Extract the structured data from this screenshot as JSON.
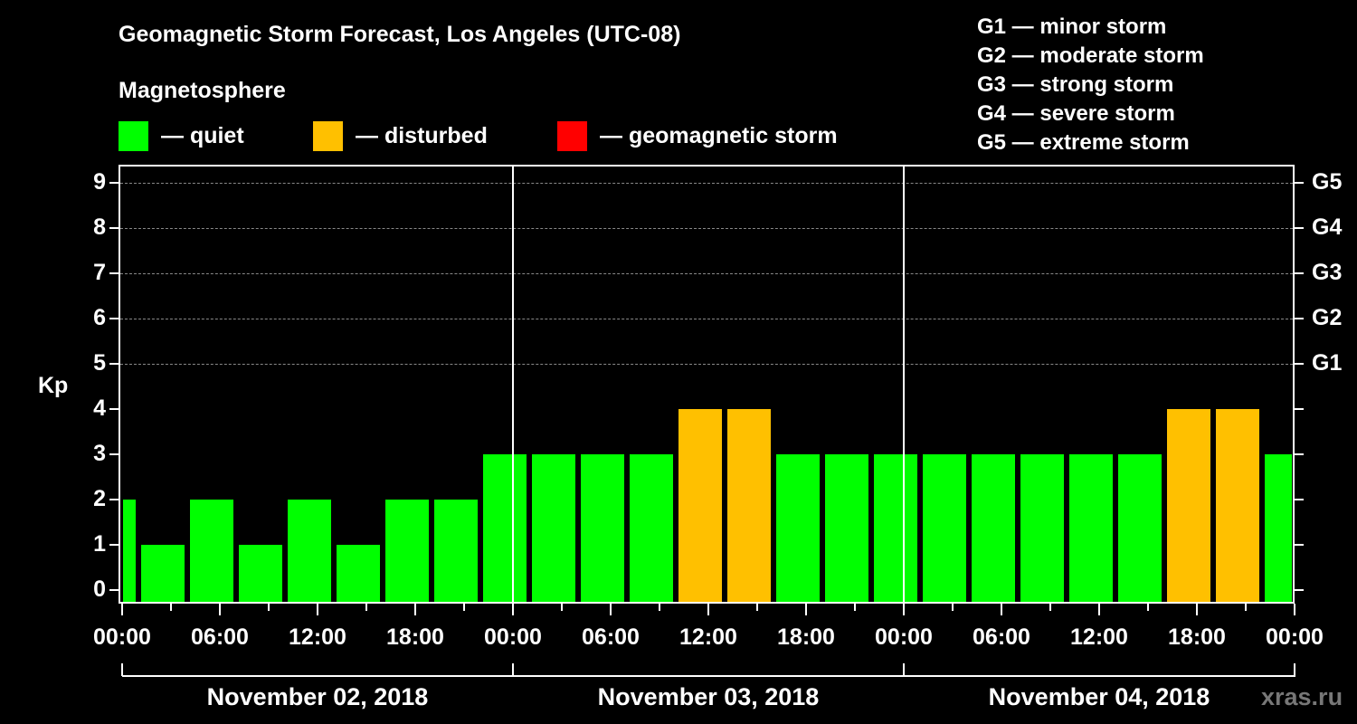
{
  "title": "Geomagnetic Storm Forecast, Los Angeles (UTC-08)",
  "subtitle": "Magnetosphere",
  "legend": [
    {
      "label": "— quiet",
      "color": "#00ff00"
    },
    {
      "label": "— disturbed",
      "color": "#ffc000"
    },
    {
      "label": "— geomagnetic storm",
      "color": "#ff0000"
    }
  ],
  "g_legend": [
    "G1 — minor storm",
    "G2 — moderate storm",
    "G3 — strong storm",
    "G4 — severe storm",
    "G5 — extreme storm"
  ],
  "y_axis_label": "Kp",
  "y_ticks": [
    "0",
    "1",
    "2",
    "3",
    "4",
    "5",
    "6",
    "7",
    "8",
    "9"
  ],
  "g_ticks": [
    "G1",
    "G2",
    "G3",
    "G4",
    "G5"
  ],
  "x_ticks": [
    "00:00",
    "06:00",
    "12:00",
    "18:00",
    "00:00",
    "06:00",
    "12:00",
    "18:00",
    "00:00",
    "06:00",
    "12:00",
    "18:00",
    "00:00"
  ],
  "days": [
    "November 02, 2018",
    "November 03, 2018",
    "November 04, 2018"
  ],
  "watermark": "xras.ru",
  "chart_data": {
    "type": "bar",
    "title": "Geomagnetic Storm Forecast, Los Angeles (UTC-08)",
    "xlabel": "",
    "ylabel": "Kp",
    "ylim": [
      0,
      9
    ],
    "grid": "dashed horizontal at Kp 5-9",
    "secondary_y_labels": {
      "5": "G1",
      "6": "G2",
      "7": "G3",
      "8": "G4",
      "9": "G5"
    },
    "interval_hours": 3,
    "categories": [
      "Nov 02 01:00",
      "Nov 02 04:00",
      "Nov 02 07:00",
      "Nov 02 10:00",
      "Nov 02 13:00",
      "Nov 02 16:00",
      "Nov 02 19:00",
      "Nov 02 22:00",
      "Nov 03 01:00",
      "Nov 03 04:00",
      "Nov 03 07:00",
      "Nov 03 10:00",
      "Nov 03 13:00",
      "Nov 03 16:00",
      "Nov 03 19:00",
      "Nov 03 22:00",
      "Nov 04 01:00",
      "Nov 04 04:00",
      "Nov 04 07:00",
      "Nov 04 10:00",
      "Nov 04 13:00",
      "Nov 04 16:00",
      "Nov 04 19:00",
      "Nov 04 22:00",
      "Nov 05 01:00"
    ],
    "values": [
      2,
      1,
      2,
      1,
      2,
      1,
      2,
      2,
      3,
      3,
      3,
      3,
      4,
      4,
      3,
      3,
      3,
      3,
      3,
      3,
      3,
      3,
      4,
      4,
      3
    ],
    "status": [
      "quiet",
      "quiet",
      "quiet",
      "quiet",
      "quiet",
      "quiet",
      "quiet",
      "quiet",
      "quiet",
      "quiet",
      "quiet",
      "quiet",
      "disturbed",
      "disturbed",
      "quiet",
      "quiet",
      "quiet",
      "quiet",
      "quiet",
      "quiet",
      "quiet",
      "quiet",
      "disturbed",
      "disturbed",
      "quiet"
    ],
    "legend": [
      "quiet",
      "disturbed",
      "geomagnetic storm"
    ],
    "colors": {
      "quiet": "#00ff00",
      "disturbed": "#ffc000",
      "storm": "#ff0000"
    }
  }
}
